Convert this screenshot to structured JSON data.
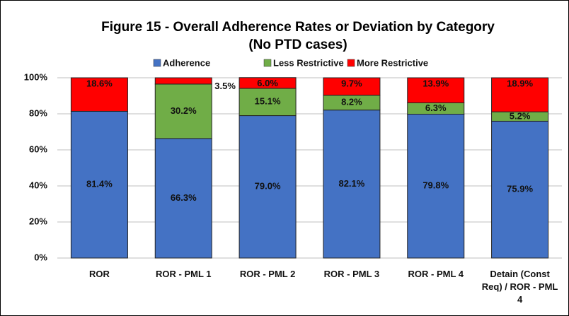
{
  "chart_data": {
    "type": "stacked_bar",
    "title": "Figure 15 - Overall Adherence Rates or Deviation by Category",
    "subtitle": "(No PTD cases)",
    "categories": [
      "ROR",
      "ROR - PML 1",
      "ROR - PML 2",
      "ROR - PML 3",
      "ROR - PML 4",
      "Detain (Const Req) / ROR - PML 4"
    ],
    "series": [
      {
        "name": "Adherence",
        "color": "#4472c4",
        "values": [
          81.4,
          66.3,
          79.0,
          82.1,
          79.8,
          75.9
        ],
        "value_labels": [
          "81.4%",
          "66.3%",
          "79.0%",
          "82.1%",
          "79.8%",
          "75.9%"
        ]
      },
      {
        "name": "Less Restrictive",
        "color": "#70ad47",
        "values": [
          null,
          30.2,
          15.1,
          8.2,
          6.3,
          5.2
        ],
        "value_labels": [
          null,
          "30.2%",
          "15.1%",
          "8.2%",
          "6.3%",
          "5.2%"
        ]
      },
      {
        "name": "More Restrictive",
        "color": "#ff0000",
        "values": [
          18.6,
          3.5,
          6.0,
          9.7,
          13.9,
          18.9
        ],
        "value_labels": [
          "18.6%",
          "3.5%",
          "6.0%",
          "9.7%",
          "13.9%",
          "18.9%"
        ]
      }
    ],
    "ylim": [
      0,
      100
    ],
    "yticks": [
      {
        "value": 0,
        "label": "0%"
      },
      {
        "value": 20,
        "label": "20%"
      },
      {
        "value": 40,
        "label": "40%"
      },
      {
        "value": 60,
        "label": "60%"
      },
      {
        "value": 80,
        "label": "80%"
      },
      {
        "value": 100,
        "label": "100%"
      }
    ],
    "grid": true,
    "legend": "top"
  }
}
